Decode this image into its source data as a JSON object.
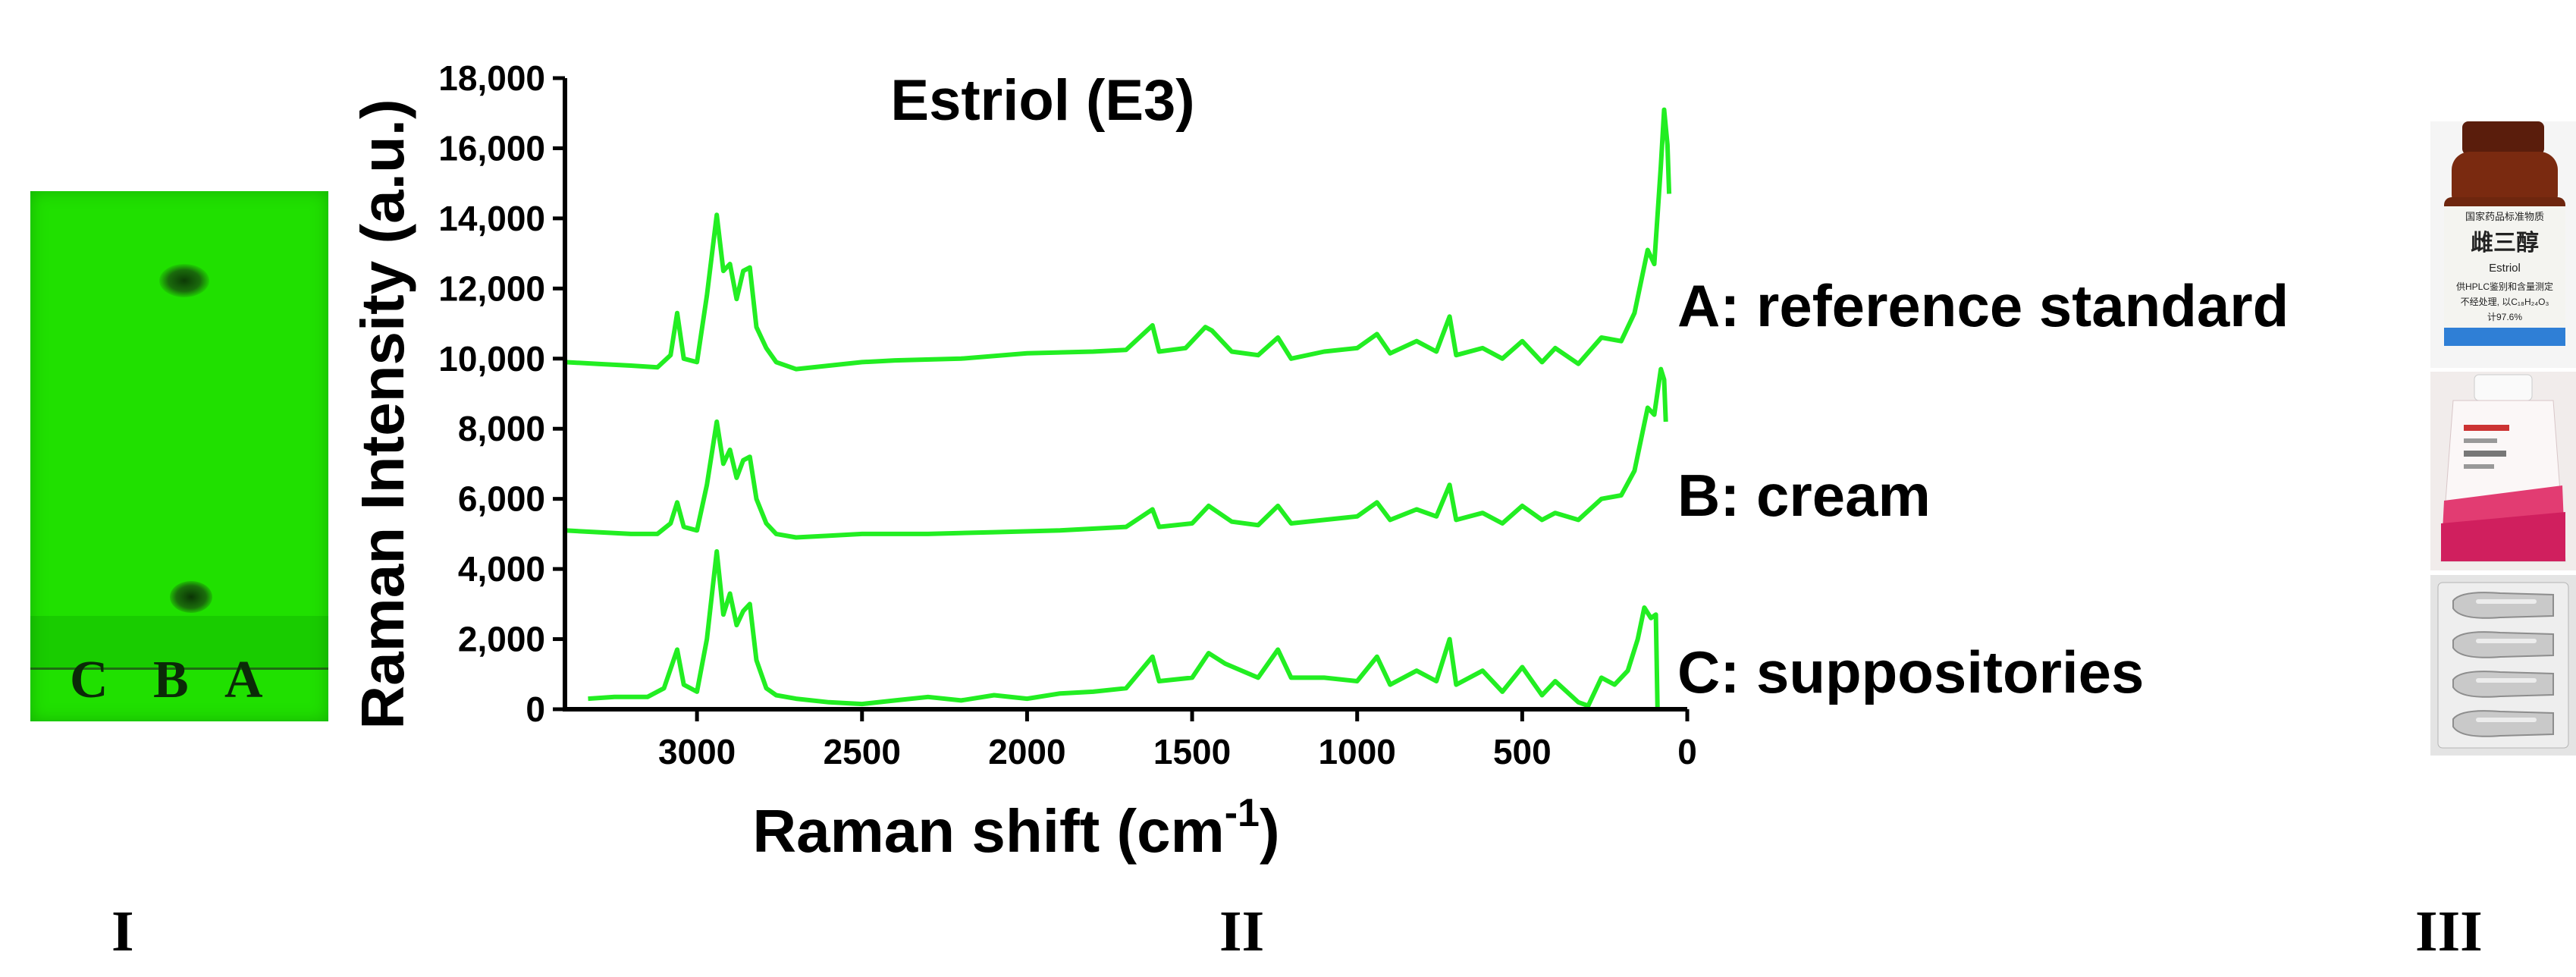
{
  "panels": {
    "panel_1_label": "I",
    "panel_2_label": "II",
    "panel_3_label": "III"
  },
  "tlc": {
    "lane_labels": [
      "C",
      "B",
      "A"
    ]
  },
  "photos": {
    "reference_label_line1": "国家药品标准物质",
    "reference_label_line2": "雌三醇",
    "reference_label_line3": "Estriol",
    "reference_label_line4": "供HPLC鉴别和含量测定",
    "reference_label_line5": "不经处理, 以C₁₈H₂₄O₃",
    "reference_label_line6": "计97.6%"
  },
  "colors": {
    "line": "#22ee22",
    "tlc_plate": "#20e000",
    "bottle": "#7a2a10"
  },
  "chart_data": {
    "type": "line",
    "title": "Estriol (E3)",
    "xlabel": "Raman shift (cm",
    "xlabel_superscript": "-1",
    "xlabel_suffix": ")",
    "ylabel": "Raman Intensity (a.u.)",
    "xlim": [
      3400,
      0
    ],
    "ylim": [
      0,
      18000
    ],
    "x_reversed": true,
    "grid": false,
    "xticks": [
      3000,
      2500,
      2000,
      1500,
      1000,
      500,
      0
    ],
    "xtick_labels": [
      "3000",
      "2500",
      "2000",
      "1500",
      "1000",
      "500",
      "0"
    ],
    "yticks": [
      0,
      2000,
      4000,
      6000,
      8000,
      10000,
      12000,
      14000,
      16000,
      18000
    ],
    "ytick_labels": [
      "0",
      "2,000",
      "4,000",
      "6,000",
      "8,000",
      "10,000",
      "12,000",
      "14,000",
      "16,000",
      "18,000"
    ],
    "series": [
      {
        "name": "A: reference standard",
        "points": [
          [
            3400,
            9900
          ],
          [
            3300,
            9850
          ],
          [
            3200,
            9800
          ],
          [
            3120,
            9750
          ],
          [
            3080,
            10100
          ],
          [
            3060,
            11300
          ],
          [
            3040,
            10000
          ],
          [
            3000,
            9900
          ],
          [
            2970,
            11800
          ],
          [
            2940,
            14100
          ],
          [
            2920,
            12500
          ],
          [
            2900,
            12700
          ],
          [
            2880,
            11700
          ],
          [
            2860,
            12500
          ],
          [
            2840,
            12600
          ],
          [
            2820,
            10900
          ],
          [
            2790,
            10300
          ],
          [
            2760,
            9900
          ],
          [
            2700,
            9700
          ],
          [
            2600,
            9800
          ],
          [
            2500,
            9900
          ],
          [
            2400,
            9950
          ],
          [
            2200,
            10000
          ],
          [
            2000,
            10150
          ],
          [
            1800,
            10200
          ],
          [
            1700,
            10250
          ],
          [
            1620,
            10950
          ],
          [
            1600,
            10200
          ],
          [
            1520,
            10300
          ],
          [
            1460,
            10900
          ],
          [
            1440,
            10800
          ],
          [
            1380,
            10200
          ],
          [
            1300,
            10100
          ],
          [
            1240,
            10600
          ],
          [
            1200,
            10000
          ],
          [
            1100,
            10200
          ],
          [
            1000,
            10300
          ],
          [
            940,
            10700
          ],
          [
            900,
            10150
          ],
          [
            820,
            10500
          ],
          [
            760,
            10200
          ],
          [
            720,
            11200
          ],
          [
            700,
            10100
          ],
          [
            620,
            10300
          ],
          [
            560,
            10000
          ],
          [
            500,
            10500
          ],
          [
            440,
            9900
          ],
          [
            400,
            10300
          ],
          [
            330,
            9850
          ],
          [
            260,
            10600
          ],
          [
            200,
            10500
          ],
          [
            160,
            11300
          ],
          [
            120,
            13100
          ],
          [
            100,
            12700
          ],
          [
            80,
            15500
          ],
          [
            70,
            17100
          ],
          [
            60,
            16100
          ],
          [
            55,
            14700
          ]
        ]
      },
      {
        "name": "B: cream",
        "points": [
          [
            3400,
            5100
          ],
          [
            3300,
            5050
          ],
          [
            3200,
            5000
          ],
          [
            3120,
            5000
          ],
          [
            3080,
            5300
          ],
          [
            3060,
            5900
          ],
          [
            3040,
            5200
          ],
          [
            3000,
            5100
          ],
          [
            2970,
            6400
          ],
          [
            2940,
            8200
          ],
          [
            2920,
            7000
          ],
          [
            2900,
            7400
          ],
          [
            2880,
            6600
          ],
          [
            2860,
            7100
          ],
          [
            2840,
            7200
          ],
          [
            2820,
            6000
          ],
          [
            2790,
            5300
          ],
          [
            2760,
            5000
          ],
          [
            2700,
            4900
          ],
          [
            2600,
            4950
          ],
          [
            2500,
            5000
          ],
          [
            2300,
            5000
          ],
          [
            2100,
            5050
          ],
          [
            1900,
            5100
          ],
          [
            1700,
            5200
          ],
          [
            1620,
            5700
          ],
          [
            1600,
            5200
          ],
          [
            1500,
            5300
          ],
          [
            1450,
            5800
          ],
          [
            1380,
            5350
          ],
          [
            1300,
            5250
          ],
          [
            1240,
            5800
          ],
          [
            1200,
            5300
          ],
          [
            1100,
            5400
          ],
          [
            1000,
            5500
          ],
          [
            940,
            5900
          ],
          [
            900,
            5400
          ],
          [
            820,
            5700
          ],
          [
            760,
            5500
          ],
          [
            720,
            6400
          ],
          [
            700,
            5400
          ],
          [
            620,
            5600
          ],
          [
            560,
            5300
          ],
          [
            500,
            5800
          ],
          [
            440,
            5400
          ],
          [
            400,
            5600
          ],
          [
            330,
            5400
          ],
          [
            260,
            6000
          ],
          [
            200,
            6100
          ],
          [
            160,
            6800
          ],
          [
            120,
            8600
          ],
          [
            100,
            8400
          ],
          [
            80,
            9700
          ],
          [
            70,
            9400
          ],
          [
            65,
            8200
          ]
        ]
      },
      {
        "name": "C: suppositories",
        "points": [
          [
            3330,
            300
          ],
          [
            3250,
            350
          ],
          [
            3150,
            350
          ],
          [
            3100,
            600
          ],
          [
            3060,
            1700
          ],
          [
            3040,
            700
          ],
          [
            3000,
            500
          ],
          [
            2970,
            2000
          ],
          [
            2940,
            4500
          ],
          [
            2920,
            2700
          ],
          [
            2900,
            3300
          ],
          [
            2880,
            2400
          ],
          [
            2860,
            2800
          ],
          [
            2840,
            3000
          ],
          [
            2820,
            1400
          ],
          [
            2790,
            600
          ],
          [
            2760,
            400
          ],
          [
            2700,
            300
          ],
          [
            2600,
            200
          ],
          [
            2500,
            150
          ],
          [
            2400,
            250
          ],
          [
            2300,
            350
          ],
          [
            2200,
            250
          ],
          [
            2100,
            400
          ],
          [
            2000,
            300
          ],
          [
            1900,
            450
          ],
          [
            1800,
            500
          ],
          [
            1700,
            600
          ],
          [
            1620,
            1500
          ],
          [
            1600,
            800
          ],
          [
            1500,
            900
          ],
          [
            1450,
            1600
          ],
          [
            1400,
            1300
          ],
          [
            1300,
            900
          ],
          [
            1240,
            1700
          ],
          [
            1200,
            900
          ],
          [
            1100,
            900
          ],
          [
            1000,
            800
          ],
          [
            940,
            1500
          ],
          [
            900,
            700
          ],
          [
            820,
            1100
          ],
          [
            760,
            800
          ],
          [
            720,
            2000
          ],
          [
            700,
            700
          ],
          [
            620,
            1100
          ],
          [
            560,
            500
          ],
          [
            500,
            1200
          ],
          [
            440,
            400
          ],
          [
            400,
            800
          ],
          [
            330,
            200
          ],
          [
            300,
            100
          ],
          [
            260,
            900
          ],
          [
            220,
            700
          ],
          [
            180,
            1100
          ],
          [
            150,
            2000
          ],
          [
            130,
            2900
          ],
          [
            110,
            2600
          ],
          [
            95,
            2700
          ],
          [
            90,
            0
          ],
          [
            85,
            0
          ]
        ]
      }
    ]
  }
}
